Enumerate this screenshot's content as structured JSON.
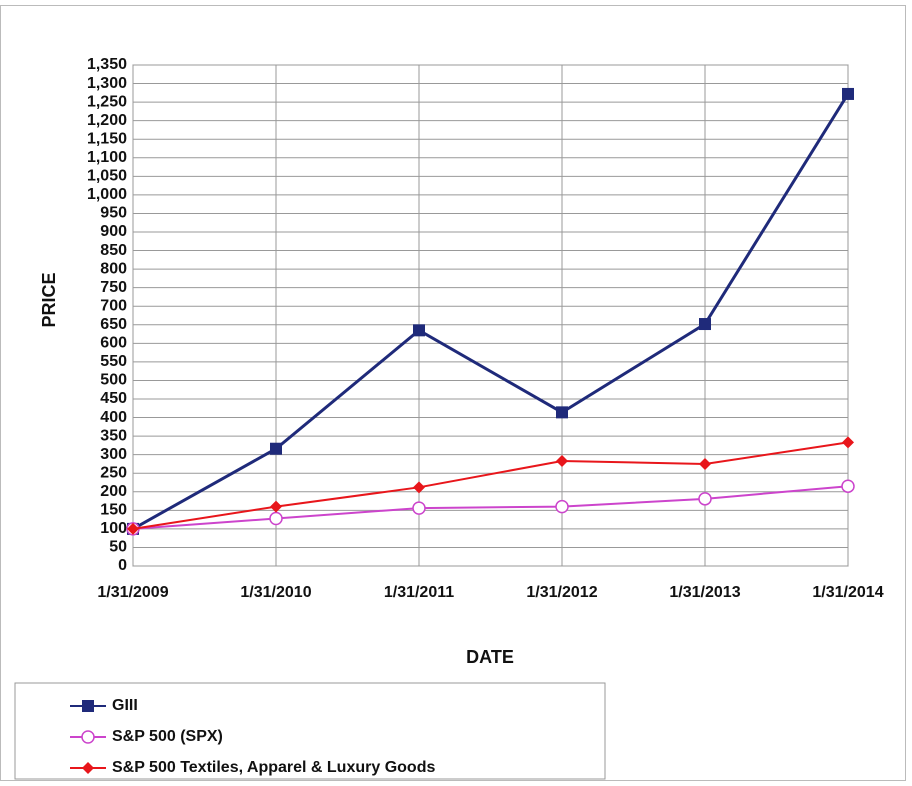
{
  "chart_data": {
    "type": "line",
    "xlabel": "DATE",
    "ylabel": "PRICE",
    "categories": [
      "1/31/2009",
      "1/31/2010",
      "1/31/2011",
      "1/31/2012",
      "1/31/2013",
      "1/31/2014"
    ],
    "series": [
      {
        "name": "GIII",
        "color": "#1f2a7a",
        "marker": "square",
        "values": [
          100,
          316,
          635,
          414,
          652,
          1272
        ]
      },
      {
        "name": "S&P 500 (SPX)",
        "color": "#cc44cc",
        "marker": "circle",
        "values": [
          100,
          128,
          156,
          160,
          181,
          215
        ]
      },
      {
        "name": "S&P 500 Textiles, Apparel & Luxury Goods",
        "color": "#e8161b",
        "marker": "diamond",
        "values": [
          100,
          160,
          212,
          283,
          275,
          333
        ]
      }
    ],
    "ylim": [
      0,
      1350
    ],
    "yticks": [
      0,
      50,
      100,
      150,
      200,
      250,
      300,
      350,
      400,
      450,
      500,
      550,
      600,
      650,
      700,
      750,
      800,
      850,
      900,
      950,
      {
        "value": 1000,
        "label": "1,000"
      },
      {
        "value": 1050,
        "label": "1,050"
      },
      {
        "value": 1100,
        "label": "1,100"
      },
      {
        "value": 1150,
        "label": "1,150"
      },
      {
        "value": 1200,
        "label": "1,200"
      },
      {
        "value": 1250,
        "label": "1,250"
      },
      {
        "value": 1300,
        "label": "1,300"
      },
      {
        "value": 1350,
        "label": "1,350"
      }
    ],
    "grid": true,
    "legend": "bottom"
  }
}
